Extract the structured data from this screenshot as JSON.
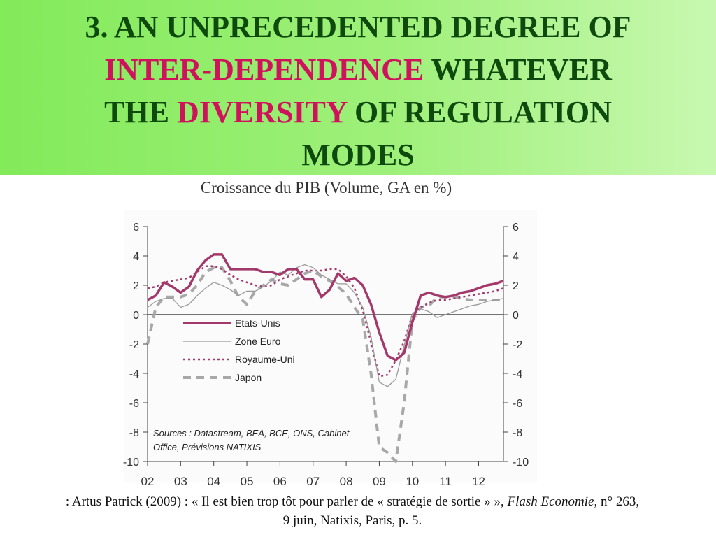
{
  "slide": {
    "title_line1": "3. AN UNPRECEDENTED DEGREE OF",
    "title_hl1": "INTER-DEPENDENCE",
    "title_mid": " WHATEVER",
    "title_pre3": "THE ",
    "title_hl2": "DIVERSITY",
    "title_post3": " OF REGULATION",
    "title_line4": "MODES",
    "colors": {
      "title": "#0e4a0e",
      "highlight": "#d0115c",
      "header_bg": "#8aec62"
    }
  },
  "source_note": {
    "part1": ": Artus Patrick (2009) : « Il est bien trop tôt pour parler de « stratégie de sortie » », ",
    "journal": "Flash Economie",
    "part2": ", n° 263,",
    "line2": "9 juin, Natixis, Paris, p. 5."
  },
  "chart_data": {
    "type": "line",
    "title": "Croissance du PIB (Volume, GA en %)",
    "xlabel": "",
    "ylabel": "",
    "xlim": [
      2002.0,
      2012.75
    ],
    "ylim": [
      -10,
      6
    ],
    "y_ticks": [
      6,
      4,
      2,
      0,
      -2,
      -4,
      -6,
      -8,
      -10
    ],
    "x_ticks": [
      {
        "label": "02",
        "x": 2002.0
      },
      {
        "label": "03",
        "x": 2003.0
      },
      {
        "label": "04",
        "x": 2004.0
      },
      {
        "label": "05",
        "x": 2005.0
      },
      {
        "label": "06",
        "x": 2006.0
      },
      {
        "label": "07",
        "x": 2007.0
      },
      {
        "label": "08",
        "x": 2008.0
      },
      {
        "label": "09",
        "x": 2009.0
      },
      {
        "label": "10",
        "x": 2010.0
      },
      {
        "label": "11",
        "x": 2011.0
      },
      {
        "label": "12",
        "x": 2012.0
      }
    ],
    "grid": false,
    "legend_position": "center-left",
    "annotation": "Sources : Datastream, BEA, BCE, ONS, Cabinet Office, Prévisions NATIXIS",
    "series": [
      {
        "name": "Etats-Unis",
        "color": "#a3396b",
        "style": "solid-thick",
        "x": [
          2002.0,
          2002.25,
          2002.5,
          2002.75,
          2003.0,
          2003.25,
          2003.5,
          2003.75,
          2004.0,
          2004.25,
          2004.5,
          2004.75,
          2005.0,
          2005.25,
          2005.5,
          2005.75,
          2006.0,
          2006.25,
          2006.5,
          2006.75,
          2007.0,
          2007.25,
          2007.5,
          2007.75,
          2008.0,
          2008.25,
          2008.5,
          2008.75,
          2009.0,
          2009.25,
          2009.5,
          2009.75,
          2010.0,
          2010.25,
          2010.5,
          2010.75,
          2011.0,
          2011.25,
          2011.5,
          2011.75,
          2012.0,
          2012.25,
          2012.5,
          2012.75
        ],
        "y": [
          1.0,
          1.3,
          2.2,
          1.9,
          1.5,
          1.9,
          3.0,
          3.7,
          4.1,
          4.1,
          3.1,
          3.1,
          3.1,
          3.1,
          2.9,
          2.9,
          2.7,
          3.1,
          3.1,
          2.4,
          2.4,
          1.2,
          1.7,
          2.8,
          2.3,
          2.5,
          2.0,
          0.7,
          -1.2,
          -2.8,
          -3.1,
          -2.6,
          -0.5,
          1.3,
          1.5,
          1.3,
          1.2,
          1.3,
          1.5,
          1.6,
          1.8,
          2.0,
          2.1,
          2.3
        ]
      },
      {
        "name": "Zone Euro",
        "color": "#9a9a9a",
        "style": "solid-thin",
        "x": [
          2002.0,
          2002.25,
          2002.5,
          2002.75,
          2003.0,
          2003.25,
          2003.5,
          2003.75,
          2004.0,
          2004.25,
          2004.5,
          2004.75,
          2005.0,
          2005.25,
          2005.5,
          2005.75,
          2006.0,
          2006.25,
          2006.5,
          2006.75,
          2007.0,
          2007.25,
          2007.5,
          2007.75,
          2008.0,
          2008.25,
          2008.5,
          2008.75,
          2009.0,
          2009.25,
          2009.5,
          2009.75,
          2010.0,
          2010.25,
          2010.5,
          2010.75,
          2011.0,
          2011.25,
          2011.5,
          2011.75,
          2012.0,
          2012.25,
          2012.5,
          2012.75
        ],
        "y": [
          0.5,
          0.9,
          1.1,
          1.1,
          0.5,
          0.7,
          1.3,
          1.8,
          2.2,
          2.0,
          1.7,
          1.3,
          1.6,
          1.6,
          1.9,
          2.3,
          2.9,
          2.7,
          3.2,
          3.4,
          3.2,
          2.7,
          2.4,
          2.1,
          2.1,
          1.5,
          0.5,
          -1.5,
          -4.6,
          -4.9,
          -4.4,
          -2.1,
          0.1,
          0.4,
          0.2,
          -0.2,
          0.0,
          0.2,
          0.4,
          0.6,
          0.7,
          0.9,
          1.0,
          1.1
        ]
      },
      {
        "name": "Royaume-Uni",
        "color": "#a3396b",
        "style": "dotted",
        "x": [
          2002.0,
          2002.25,
          2002.5,
          2002.75,
          2003.0,
          2003.25,
          2003.5,
          2003.75,
          2004.0,
          2004.25,
          2004.5,
          2004.75,
          2005.0,
          2005.25,
          2005.5,
          2005.75,
          2006.0,
          2006.25,
          2006.5,
          2006.75,
          2007.0,
          2007.25,
          2007.5,
          2007.75,
          2008.0,
          2008.25,
          2008.5,
          2008.75,
          2009.0,
          2009.25,
          2009.5,
          2009.75,
          2010.0,
          2010.25,
          2010.5,
          2010.75,
          2011.0,
          2011.25,
          2011.5,
          2011.75,
          2012.0,
          2012.25,
          2012.5,
          2012.75
        ],
        "y": [
          1.8,
          1.9,
          2.2,
          2.3,
          2.4,
          2.5,
          2.9,
          3.3,
          3.3,
          3.1,
          2.7,
          2.4,
          2.2,
          2.0,
          1.9,
          2.0,
          2.4,
          2.6,
          2.8,
          3.0,
          3.0,
          3.0,
          3.1,
          3.1,
          2.6,
          1.8,
          0.3,
          -1.9,
          -4.2,
          -4.1,
          -3.1,
          -1.8,
          0.0,
          0.5,
          0.8,
          1.0,
          1.0,
          1.1,
          1.2,
          1.3,
          1.4,
          1.5,
          1.6,
          1.8
        ]
      },
      {
        "name": "Japon",
        "color": "#a8a8a8",
        "style": "dashed",
        "x": [
          2002.0,
          2002.25,
          2002.5,
          2002.75,
          2003.0,
          2003.25,
          2003.5,
          2003.75,
          2004.0,
          2004.25,
          2004.5,
          2004.75,
          2005.0,
          2005.25,
          2005.5,
          2005.75,
          2006.0,
          2006.25,
          2006.5,
          2006.75,
          2007.0,
          2007.25,
          2007.5,
          2007.75,
          2008.0,
          2008.25,
          2008.5,
          2008.75,
          2009.0,
          2009.25,
          2009.5,
          2009.75,
          2010.0,
          2010.25,
          2010.5,
          2010.75,
          2011.0,
          2011.25,
          2011.5,
          2011.75,
          2012.0,
          2012.25,
          2012.5,
          2012.75
        ],
        "y": [
          -2.0,
          0.5,
          1.2,
          1.2,
          1.2,
          1.4,
          2.0,
          2.9,
          3.2,
          3.2,
          2.3,
          1.2,
          0.7,
          1.6,
          2.0,
          2.4,
          2.1,
          2.0,
          2.4,
          2.8,
          3.0,
          2.6,
          2.3,
          1.9,
          1.4,
          0.5,
          -0.3,
          -4.0,
          -9.0,
          -9.4,
          -10.0,
          -6.0,
          -0.4,
          0.5,
          0.6,
          1.2,
          1.2,
          1.2,
          1.1,
          1.0,
          1.0,
          1.0,
          1.0,
          1.0
        ]
      }
    ]
  }
}
